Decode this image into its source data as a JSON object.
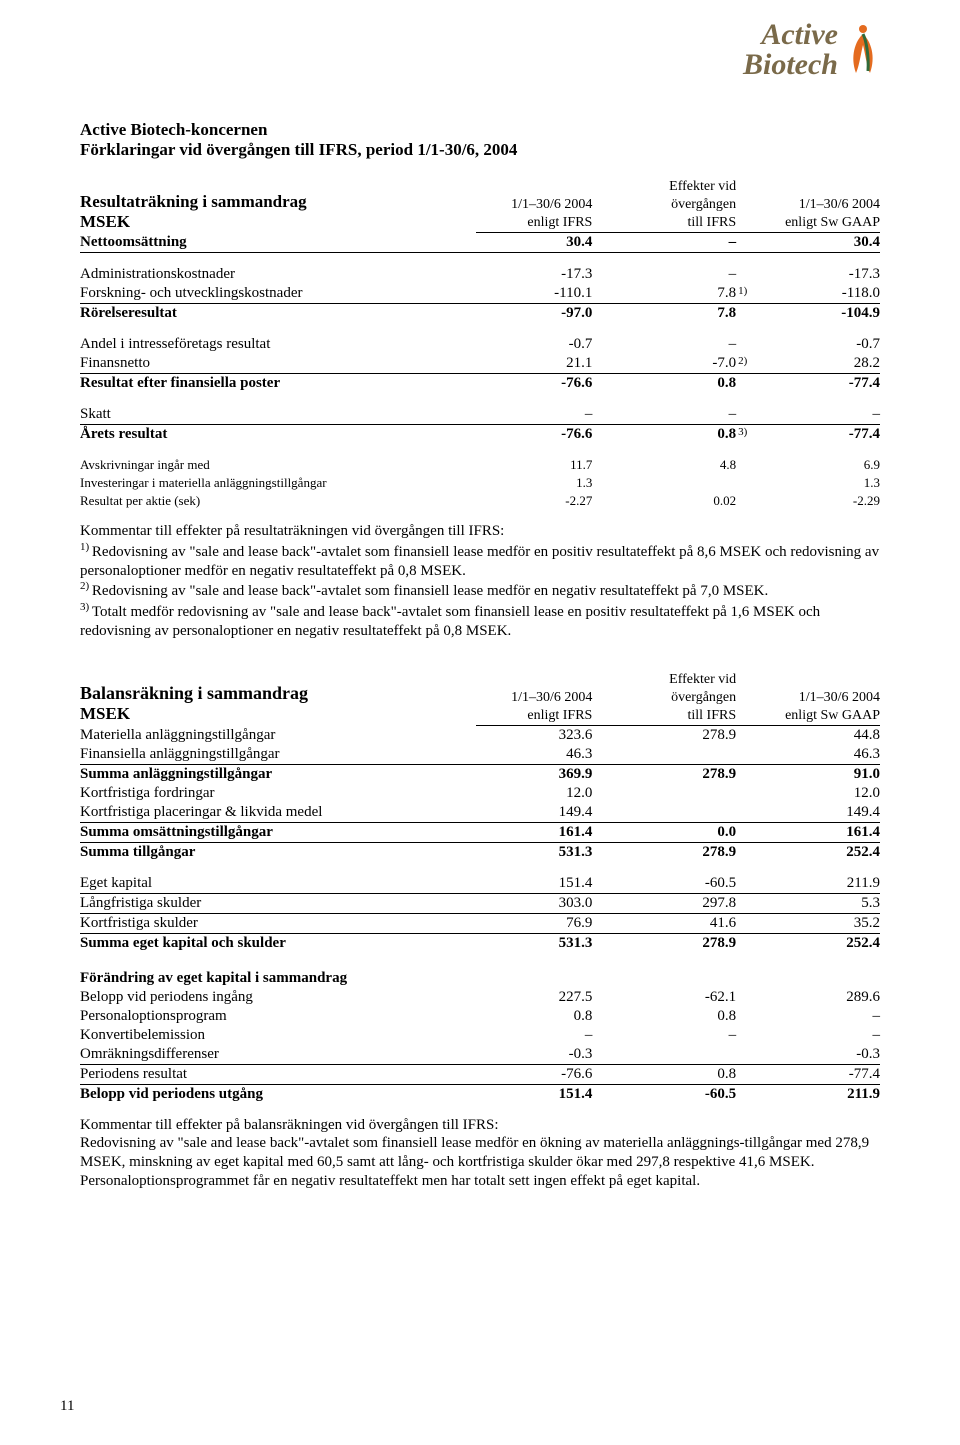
{
  "page_number": "11",
  "logo": {
    "line1": "Active",
    "line2": "Biotech",
    "color": "#7a6a4a",
    "accent1": "#e46b1f",
    "accent2": "#2f6a3a"
  },
  "heading": {
    "line1": "Active Biotech-koncernen",
    "line2": "Förklaringar vid övergången till IFRS, period 1/1-30/6, 2004"
  },
  "columns": {
    "c1a": "1/1–30/6 2004",
    "c1b": "enligt IFRS",
    "c2a": "Effekter vid",
    "c2b": "övergången",
    "c2c": "till IFRS",
    "c3a": "1/1–30/6 2004",
    "c3b": "enligt Sw GAAP"
  },
  "income": {
    "title": "Resultaträkning i sammandrag",
    "unit": "MSEK",
    "rows": [
      {
        "label": "Nettoomsättning",
        "c1": "30.4",
        "c2": "–",
        "c3": "30.4",
        "bold": true,
        "rule": true
      },
      {
        "spacer": true
      },
      {
        "label": "Administrationskostnader",
        "c1": "-17.3",
        "c2": "–",
        "c3": "-17.3"
      },
      {
        "label": "Forskning- och utvecklingskostnader",
        "c1": "-110.1",
        "c2": "7.8",
        "sup": "1)",
        "c3": "-118.0",
        "rule": true
      },
      {
        "label": "Rörelseresultat",
        "c1": "-97.0",
        "c2": "7.8",
        "c3": "-104.9",
        "bold": true
      },
      {
        "spacer": true
      },
      {
        "label": "Andel i intresseföretags resultat",
        "c1": "-0.7",
        "c2": "–",
        "c3": "-0.7"
      },
      {
        "label": "Finansnetto",
        "c1": "21.1",
        "c2": "-7.0",
        "sup": "2)",
        "c3": "28.2",
        "rule": true
      },
      {
        "label": "Resultat efter finansiella poster",
        "c1": "-76.6",
        "c2": "0.8",
        "c3": "-77.4",
        "bold": true
      },
      {
        "spacer": true
      },
      {
        "label": "Skatt",
        "c1": "–",
        "c2": "–",
        "c3": "–",
        "rule": true
      },
      {
        "label": "Årets resultat",
        "c1": "-76.6",
        "c2": "0.8",
        "sup": "3)",
        "c3": "-77.4",
        "bold": true
      },
      {
        "spacer": true
      },
      {
        "label": "Avskrivningar ingår med",
        "c1": "11.7",
        "c2": "4.8",
        "c3": "6.9",
        "small": true
      },
      {
        "label": "Investeringar i materiella anläggningstillgångar",
        "c1": "1.3",
        "c2": "",
        "c3": "1.3",
        "small": true
      },
      {
        "label": "Resultat per aktie (sek)",
        "c1": "-2.27",
        "c2": "0.02",
        "c3": "-2.29",
        "small": true
      }
    ]
  },
  "income_notes": {
    "lead": "Kommentar till effekter på resultaträkningen vid övergången till IFRS:",
    "n1": "Redovisning av \"sale and lease back\"-avtalet som finansiell lease medför en positiv resultateffekt på 8,6 MSEK och redovisning av personaloptioner medför en negativ resultateffekt på 0,8 MSEK.",
    "n2": "Redovisning av \"sale and lease back\"-avtalet som finansiell lease medför en negativ resultateffekt på 7,0 MSEK.",
    "n3": "Totalt medför redovisning av \"sale and lease back\"-avtalet som finansiell lease en positiv resultateffekt på 1,6 MSEK och redovisning av personaloptioner en negativ resultateffekt på 0,8 MSEK."
  },
  "balance": {
    "title": "Balansräkning i sammandrag",
    "unit": "MSEK",
    "rows": [
      {
        "label": "Materiella anläggningstillgångar",
        "c1": "323.6",
        "c2": "278.9",
        "c3": "44.8"
      },
      {
        "label": "Finansiella anläggningstillgångar",
        "c1": "46.3",
        "c2": "",
        "c3": "46.3",
        "rule": true
      },
      {
        "label": "Summa anläggningstillgångar",
        "c1": "369.9",
        "c2": "278.9",
        "c3": "91.0",
        "bold": true
      },
      {
        "label": "Kortfristiga fordringar",
        "c1": "12.0",
        "c2": "",
        "c3": "12.0"
      },
      {
        "label": "Kortfristiga placeringar & likvida medel",
        "c1": "149.4",
        "c2": "",
        "c3": "149.4",
        "rule": true
      },
      {
        "label": "Summa omsättningstillgångar",
        "c1": "161.4",
        "c2": "0.0",
        "c3": "161.4",
        "bold": true,
        "rule": true
      },
      {
        "label": "Summa tillgångar",
        "c1": "531.3",
        "c2": "278.9",
        "c3": "252.4",
        "bold": true
      },
      {
        "spacer": true
      },
      {
        "label": "Eget kapital",
        "c1": "151.4",
        "c2": "-60.5",
        "c3": "211.9",
        "rule": true
      },
      {
        "label": "Långfristiga skulder",
        "c1": "303.0",
        "c2": "297.8",
        "c3": "5.3",
        "rule": true
      },
      {
        "label": "Kortfristiga skulder",
        "c1": "76.9",
        "c2": "41.6",
        "c3": "35.2",
        "rule": true
      },
      {
        "label": "Summa eget kapital och skulder",
        "c1": "531.3",
        "c2": "278.9",
        "c3": "252.4",
        "bold": true
      }
    ]
  },
  "equity": {
    "title": "Förändring av eget kapital i sammandrag",
    "rows": [
      {
        "label": "Belopp vid periodens ingång",
        "c1": "227.5",
        "c2": "-62.1",
        "c3": "289.6"
      },
      {
        "label": "Personaloptionsprogram",
        "c1": "0.8",
        "c2": "0.8",
        "c3": "–"
      },
      {
        "label": "Konvertibelemission",
        "c1": "–",
        "c2": "–",
        "c3": "–"
      },
      {
        "label": "Omräkningsdifferenser",
        "c1": "-0.3",
        "c2": "",
        "c3": "-0.3",
        "rule": true
      },
      {
        "label": "Periodens resultat",
        "c1": "-76.6",
        "c2": "0.8",
        "c3": "-77.4",
        "rule": true
      },
      {
        "label": "Belopp vid periodens utgång",
        "c1": "151.4",
        "c2": "-60.5",
        "c3": "211.9",
        "bold": true
      }
    ]
  },
  "balance_notes": {
    "lead": "Kommentar till effekter på balansräkningen vid övergången till IFRS:",
    "body": "Redovisning av \"sale and lease back\"-avtalet som finansiell lease medför en ökning av materiella anläggnings-tillgångar med 278,9 MSEK, minskning av eget kapital med 60,5 samt att lång- och kortfristiga skulder ökar med 297,8 respektive 41,6 MSEK. Personaloptionsprogrammet får en negativ resultateffekt men har totalt sett ingen effekt på eget kapital."
  }
}
